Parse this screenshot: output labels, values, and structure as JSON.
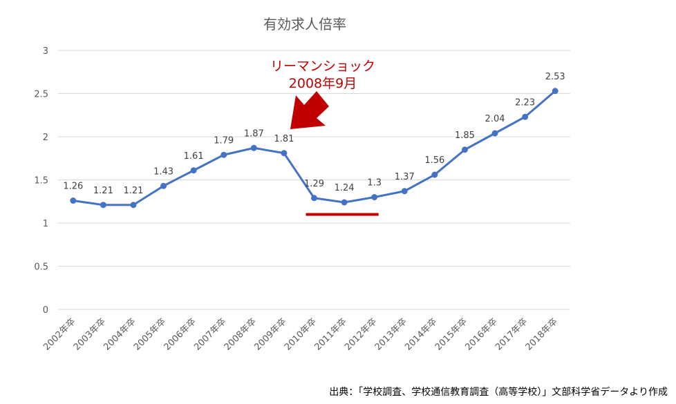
{
  "chart_data": {
    "type": "line",
    "title": "有効求人倍率",
    "xlabel": "",
    "ylabel": "",
    "categories": [
      "2002年卒",
      "2003年卒",
      "2004年卒",
      "2005年卒",
      "2006年卒",
      "2007年卒",
      "2008年卒",
      "2009年卒",
      "2010年卒",
      "2011年卒",
      "2012年卒",
      "2013年卒",
      "2014年卒",
      "2015年卒",
      "2016年卒",
      "2017年卒",
      "2018年卒"
    ],
    "series": [
      {
        "values": [
          1.26,
          1.21,
          1.21,
          1.43,
          1.61,
          1.79,
          1.87,
          1.81,
          1.29,
          1.24,
          1.3,
          1.37,
          1.56,
          1.85,
          2.04,
          2.23,
          2.53
        ],
        "labels": [
          "1.26",
          "1.21",
          "1.21",
          "1.43",
          "1.61",
          "1.79",
          "1.87",
          "1.81",
          "1.29",
          "1.24",
          "1.3",
          "1.37",
          "1.56",
          "1.85",
          "2.04",
          "2.23",
          "2.53"
        ],
        "color": "#4472c4"
      }
    ],
    "ylim": [
      0,
      3
    ],
    "yticks": [
      "0",
      "0.5",
      "1",
      "1.5",
      "2",
      "2.5",
      "3"
    ],
    "grid": true,
    "annotations": [
      {
        "text_line1": "リーマンショック",
        "text_line2": "2008年9月",
        "color": "#c00000",
        "points_between": [
          "2009年卒",
          "2010年卒"
        ]
      }
    ],
    "highlight_segment": {
      "from": "2010年卒",
      "to": "2012年卒",
      "at_y": 1.1,
      "color": "#c00000"
    }
  },
  "source_note": "出典：「学校調査、学校通信教育調査（高等学校）」文部科学省データより作成"
}
